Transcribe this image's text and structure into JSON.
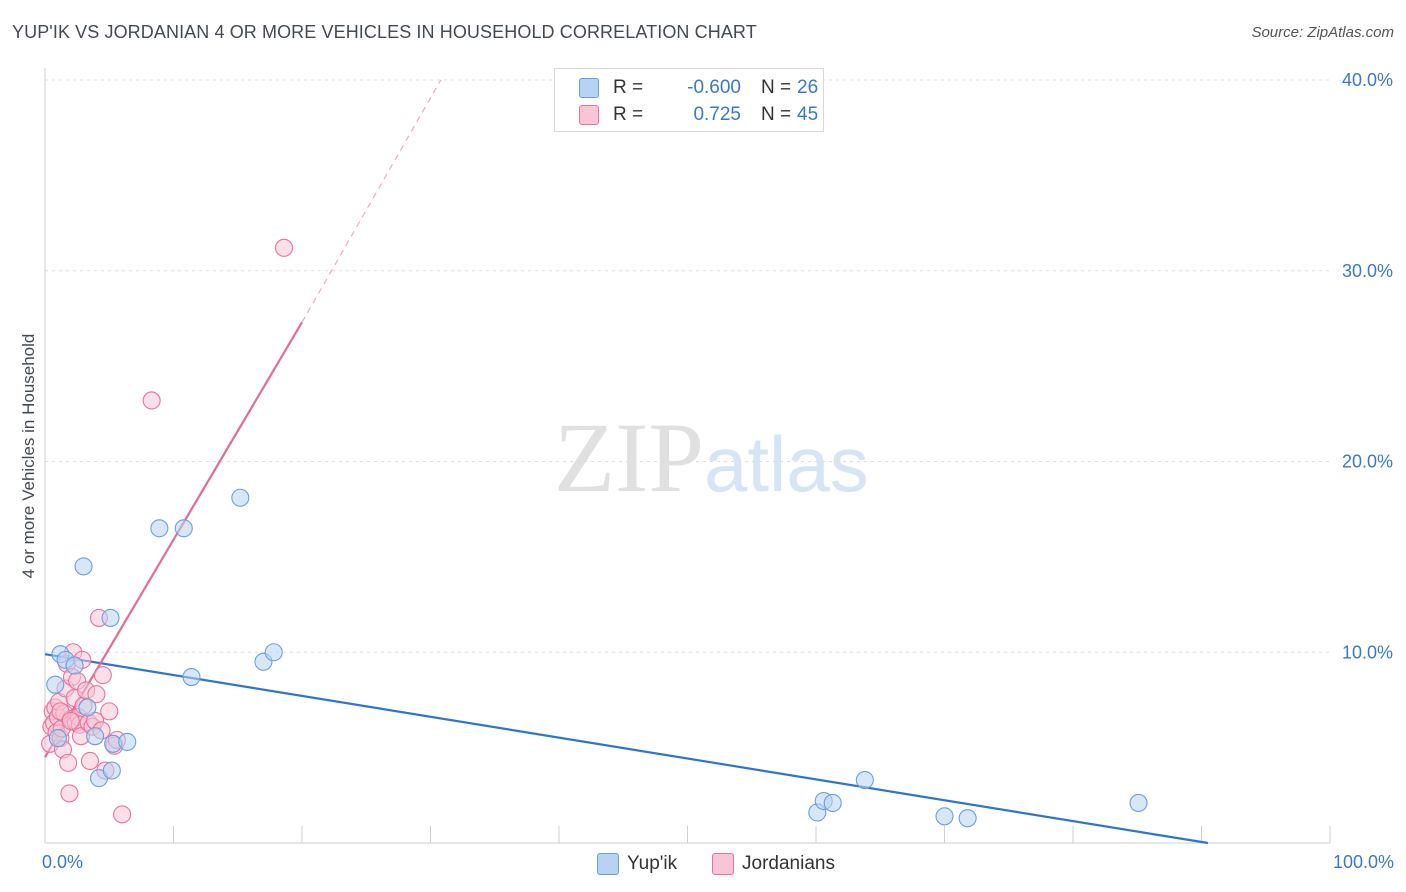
{
  "title": "YUP'IK VS JORDANIAN 4 OR MORE VEHICLES IN HOUSEHOLD CORRELATION CHART",
  "source": "Source: ZipAtlas.com",
  "watermark": {
    "zip": "ZIP",
    "atlas": "atlas"
  },
  "legend": {
    "rows": [
      {
        "label": "R =",
        "r": "-0.600",
        "n_label": "N =",
        "n": "26",
        "color": "#a9c9f0"
      },
      {
        "label": "R =",
        "r": "0.725",
        "n_label": "N =",
        "n": "45",
        "color": "#f7b8cb"
      }
    ]
  },
  "bottom_legend": [
    {
      "name": "Yup'ik",
      "color": "#a9c9f0"
    },
    {
      "name": "Jordanians",
      "color": "#f7b8cb"
    }
  ],
  "x_axis": {
    "min_label": "0.0%",
    "max_label": "100.0%"
  },
  "chart_data": {
    "type": "scatter",
    "title": "YUP'IK VS JORDANIAN 4 OR MORE VEHICLES IN HOUSEHOLD CORRELATION CHART",
    "xlabel": "",
    "ylabel": "4 or more Vehicles in Household",
    "xlim": [
      0,
      100
    ],
    "ylim": [
      0,
      40
    ],
    "ytick_labels": [
      "10.0%",
      "20.0%",
      "30.0%",
      "40.0%"
    ],
    "yticks": [
      10,
      20,
      30,
      40
    ],
    "grid": true,
    "series": [
      {
        "name": "Yup'ik",
        "color": "#6a9fe0",
        "fill": "#b7d3f3",
        "R": -0.6,
        "N": 26,
        "points": [
          [
            0.8,
            8.3
          ],
          [
            1.2,
            9.9
          ],
          [
            1.6,
            9.6
          ],
          [
            2.3,
            9.3
          ],
          [
            1.0,
            5.5
          ],
          [
            3.0,
            14.5
          ],
          [
            3.3,
            7.1
          ],
          [
            5.1,
            11.8
          ],
          [
            3.9,
            5.6
          ],
          [
            4.2,
            3.4
          ],
          [
            5.2,
            3.8
          ],
          [
            5.3,
            5.2
          ],
          [
            6.4,
            5.3
          ],
          [
            8.9,
            16.5
          ],
          [
            10.8,
            16.5
          ],
          [
            11.4,
            8.7
          ],
          [
            15.2,
            18.1
          ],
          [
            17.0,
            9.5
          ],
          [
            17.8,
            10.0
          ],
          [
            60.1,
            1.6
          ],
          [
            60.6,
            2.2
          ],
          [
            61.3,
            2.1
          ],
          [
            63.8,
            3.3
          ],
          [
            70.0,
            1.4
          ],
          [
            71.8,
            1.3
          ],
          [
            85.1,
            2.1
          ]
        ],
        "trend": {
          "x0": 0,
          "y0": 9.9,
          "x1": 90.5,
          "y1": 0.0,
          "style": "solid"
        }
      },
      {
        "name": "Jordanians",
        "color": "#e8739a",
        "fill": "#f9c4d4",
        "R": 0.725,
        "N": 45,
        "points": [
          [
            18.6,
            31.2
          ],
          [
            8.3,
            23.2
          ],
          [
            4.2,
            11.8
          ],
          [
            0.4,
            5.2
          ],
          [
            0.5,
            6.1
          ],
          [
            0.6,
            6.9
          ],
          [
            0.7,
            6.3
          ],
          [
            0.8,
            7.1
          ],
          [
            0.9,
            5.8
          ],
          [
            1.0,
            6.6
          ],
          [
            1.1,
            7.4
          ],
          [
            1.2,
            5.5
          ],
          [
            1.3,
            6.0
          ],
          [
            1.4,
            4.9
          ],
          [
            1.5,
            6.8
          ],
          [
            1.6,
            8.1
          ],
          [
            1.7,
            9.4
          ],
          [
            1.8,
            4.2
          ],
          [
            1.9,
            2.6
          ],
          [
            2.0,
            6.5
          ],
          [
            2.1,
            8.7
          ],
          [
            2.2,
            10.0
          ],
          [
            2.3,
            7.6
          ],
          [
            2.4,
            6.3
          ],
          [
            2.5,
            8.5
          ],
          [
            2.6,
            6.6
          ],
          [
            2.7,
            6.2
          ],
          [
            2.8,
            5.6
          ],
          [
            2.9,
            9.6
          ],
          [
            3.0,
            7.2
          ],
          [
            3.2,
            8.0
          ],
          [
            3.4,
            6.3
          ],
          [
            3.5,
            4.3
          ],
          [
            3.7,
            6.1
          ],
          [
            3.9,
            6.4
          ],
          [
            4.0,
            7.8
          ],
          [
            4.4,
            5.9
          ],
          [
            4.5,
            8.8
          ],
          [
            4.7,
            3.8
          ],
          [
            5.0,
            6.9
          ],
          [
            5.4,
            5.1
          ],
          [
            5.6,
            5.4
          ],
          [
            6.0,
            1.5
          ],
          [
            1.2,
            6.9
          ],
          [
            2.0,
            6.4
          ]
        ],
        "trend": {
          "x0": 0,
          "y0": 4.5,
          "x1": 20.0,
          "y1": 27.3,
          "style": "solid"
        },
        "trend_ext": {
          "x0": 20.0,
          "y0": 27.3,
          "x1": 30.8,
          "y1": 40.0,
          "style": "dashed"
        }
      }
    ]
  }
}
